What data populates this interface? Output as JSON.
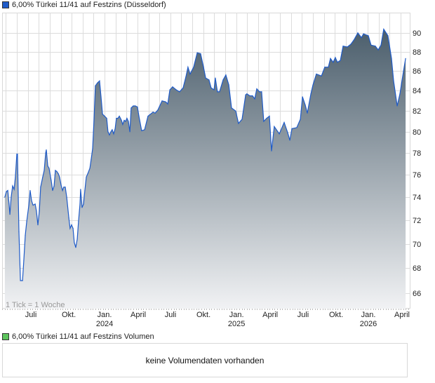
{
  "price_legend": "6,00% Türkei 11/41 auf Festzins (Düsseldorf)",
  "volume_legend": "6,00% Türkei 11/41 auf Festzins Volumen",
  "tick_info": "1 Tick = 1 Woche",
  "volume_message": "keine Volumendaten vorhanden",
  "colors": {
    "line": "#1f5bc8",
    "fill_top": "#4b5e6c",
    "fill_bottom": "#f1f2f4",
    "price_square": "#1f5bc8",
    "volume_square": "#5cc45c",
    "grid": "#dcdcdc"
  },
  "chart_data": {
    "type": "area",
    "title": "6,00% Türkei 11/41 auf Festzins (Düsseldorf)",
    "xlabel": "",
    "ylabel": "",
    "y_scale": "log",
    "ylim": [
      64.8,
      92.2
    ],
    "xlim": [
      2023.221,
      2026.325
    ],
    "grid": true,
    "legend": "top-left",
    "y_ticks": [
      66,
      68,
      70,
      72,
      74,
      76,
      78,
      80,
      82,
      84,
      86,
      88,
      90
    ],
    "x_ticks": [
      {
        "t": 2023.44,
        "label": "Juli",
        "year": ""
      },
      {
        "t": 2023.728,
        "label": "Okt.",
        "year": ""
      },
      {
        "t": 2024.0,
        "label": "Jan.",
        "year": "2024"
      },
      {
        "t": 2024.256,
        "label": "April",
        "year": ""
      },
      {
        "t": 2024.501,
        "label": "Juli",
        "year": ""
      },
      {
        "t": 2024.752,
        "label": "Okt.",
        "year": ""
      },
      {
        "t": 2025.003,
        "label": "Jan.",
        "year": "2025"
      },
      {
        "t": 2025.259,
        "label": "April",
        "year": ""
      },
      {
        "t": 2025.509,
        "label": "Juli",
        "year": ""
      },
      {
        "t": 2025.76,
        "label": "Okt.",
        "year": ""
      },
      {
        "t": 2026.005,
        "label": "Jan.",
        "year": "2026"
      },
      {
        "t": 2026.261,
        "label": "April",
        "year": ""
      }
    ],
    "series": [
      {
        "name": "6,00% Türkei 11/41 auf Festzins",
        "points": [
          [
            2023.242,
            74.0
          ],
          [
            2023.253,
            74.5
          ],
          [
            2023.264,
            74.6
          ],
          [
            2023.274,
            73.4
          ],
          [
            2023.28,
            72.5
          ],
          [
            2023.29,
            74.0
          ],
          [
            2023.301,
            75.0
          ],
          [
            2023.312,
            74.7
          ],
          [
            2023.322,
            75.8
          ],
          [
            2023.333,
            77.9
          ],
          [
            2023.338,
            77.9
          ],
          [
            2023.349,
            71.0
          ],
          [
            2023.36,
            67.0
          ],
          [
            2023.376,
            67.0
          ],
          [
            2023.386,
            68.6
          ],
          [
            2023.397,
            70.7
          ],
          [
            2023.408,
            71.9
          ],
          [
            2023.424,
            73.3
          ],
          [
            2023.434,
            74.6
          ],
          [
            2023.445,
            73.7
          ],
          [
            2023.456,
            73.3
          ],
          [
            2023.472,
            73.4
          ],
          [
            2023.482,
            72.8
          ],
          [
            2023.493,
            71.6
          ],
          [
            2023.504,
            72.8
          ],
          [
            2023.514,
            74.9
          ],
          [
            2023.53,
            75.8
          ],
          [
            2023.541,
            76.4
          ],
          [
            2023.552,
            78.0
          ],
          [
            2023.557,
            78.3
          ],
          [
            2023.568,
            76.8
          ],
          [
            2023.578,
            76.6
          ],
          [
            2023.594,
            75.5
          ],
          [
            2023.605,
            74.6
          ],
          [
            2023.616,
            75.0
          ],
          [
            2023.626,
            76.4
          ],
          [
            2023.637,
            76.3
          ],
          [
            2023.648,
            76.1
          ],
          [
            2023.658,
            75.8
          ],
          [
            2023.669,
            75.1
          ],
          [
            2023.68,
            74.6
          ],
          [
            2023.69,
            74.9
          ],
          [
            2023.701,
            74.9
          ],
          [
            2023.712,
            74.0
          ],
          [
            2023.728,
            72.2
          ],
          [
            2023.738,
            71.3
          ],
          [
            2023.749,
            71.6
          ],
          [
            2023.76,
            71.3
          ],
          [
            2023.77,
            70.1
          ],
          [
            2023.781,
            69.7
          ],
          [
            2023.792,
            70.4
          ],
          [
            2023.802,
            71.9
          ],
          [
            2023.813,
            73.4
          ],
          [
            2023.818,
            74.7
          ],
          [
            2023.829,
            73.1
          ],
          [
            2023.84,
            73.4
          ],
          [
            2023.85,
            74.6
          ],
          [
            2023.861,
            75.8
          ],
          [
            2023.872,
            76.1
          ],
          [
            2023.888,
            76.6
          ],
          [
            2023.898,
            77.4
          ],
          [
            2023.909,
            78.4
          ],
          [
            2023.92,
            81.3
          ],
          [
            2023.93,
            84.5
          ],
          [
            2023.946,
            84.8
          ],
          [
            2023.962,
            85.0
          ],
          [
            2023.973,
            83.4
          ],
          [
            2023.984,
            81.7
          ],
          [
            2024.0,
            81.5
          ],
          [
            2024.016,
            81.3
          ],
          [
            2024.026,
            80.0
          ],
          [
            2024.037,
            79.7
          ],
          [
            2024.048,
            80.0
          ],
          [
            2024.058,
            80.2
          ],
          [
            2024.069,
            79.8
          ],
          [
            2024.08,
            80.3
          ],
          [
            2024.09,
            81.3
          ],
          [
            2024.101,
            81.3
          ],
          [
            2024.112,
            81.5
          ],
          [
            2024.128,
            81.1
          ],
          [
            2024.138,
            80.7
          ],
          [
            2024.149,
            81.1
          ],
          [
            2024.16,
            81.0
          ],
          [
            2024.17,
            81.3
          ],
          [
            2024.181,
            81.0
          ],
          [
            2024.192,
            80.0
          ],
          [
            2024.202,
            82.3
          ],
          [
            2024.218,
            82.5
          ],
          [
            2024.234,
            82.5
          ],
          [
            2024.25,
            82.4
          ],
          [
            2024.261,
            81.5
          ],
          [
            2024.282,
            80.1
          ],
          [
            2024.304,
            80.2
          ],
          [
            2024.33,
            81.5
          ],
          [
            2024.368,
            81.9
          ],
          [
            2024.384,
            81.8
          ],
          [
            2024.405,
            82.1
          ],
          [
            2024.437,
            83.0
          ],
          [
            2024.464,
            82.9
          ],
          [
            2024.48,
            82.7
          ],
          [
            2024.496,
            84.1
          ],
          [
            2024.517,
            84.4
          ],
          [
            2024.544,
            84.1
          ],
          [
            2024.57,
            83.9
          ],
          [
            2024.597,
            84.3
          ],
          [
            2024.618,
            85.4
          ],
          [
            2024.634,
            86.4
          ],
          [
            2024.65,
            85.7
          ],
          [
            2024.677,
            86.4
          ],
          [
            2024.704,
            87.9
          ],
          [
            2024.73,
            87.8
          ],
          [
            2024.752,
            86.4
          ],
          [
            2024.768,
            85.3
          ],
          [
            2024.794,
            85.1
          ],
          [
            2024.81,
            84.3
          ],
          [
            2024.832,
            84.1
          ],
          [
            2024.842,
            85.3
          ],
          [
            2024.858,
            83.9
          ],
          [
            2024.874,
            83.9
          ],
          [
            2024.901,
            85.1
          ],
          [
            2024.922,
            85.6
          ],
          [
            2024.944,
            84.6
          ],
          [
            2024.965,
            82.3
          ],
          [
            2024.997,
            82.0
          ],
          [
            2025.018,
            80.8
          ],
          [
            2025.045,
            81.2
          ],
          [
            2025.072,
            83.6
          ],
          [
            2025.082,
            83.7
          ],
          [
            2025.104,
            83.5
          ],
          [
            2025.125,
            83.5
          ],
          [
            2025.141,
            83.2
          ],
          [
            2025.157,
            84.2
          ],
          [
            2025.178,
            83.9
          ],
          [
            2025.194,
            83.9
          ],
          [
            2025.21,
            81.0
          ],
          [
            2025.232,
            81.3
          ],
          [
            2025.253,
            81.5
          ],
          [
            2025.269,
            78.2
          ],
          [
            2025.29,
            80.5
          ],
          [
            2025.328,
            79.8
          ],
          [
            2025.365,
            80.9
          ],
          [
            2025.392,
            79.9
          ],
          [
            2025.408,
            79.2
          ],
          [
            2025.424,
            80.3
          ],
          [
            2025.461,
            80.4
          ],
          [
            2025.488,
            81.2
          ],
          [
            2025.504,
            83.4
          ],
          [
            2025.525,
            82.6
          ],
          [
            2025.541,
            81.8
          ],
          [
            2025.568,
            83.7
          ],
          [
            2025.584,
            84.6
          ],
          [
            2025.61,
            85.7
          ],
          [
            2025.648,
            85.5
          ],
          [
            2025.674,
            86.4
          ],
          [
            2025.701,
            86.4
          ],
          [
            2025.717,
            87.3
          ],
          [
            2025.738,
            86.9
          ],
          [
            2025.754,
            87.4
          ],
          [
            2025.77,
            86.9
          ],
          [
            2025.792,
            87.1
          ],
          [
            2025.813,
            88.6
          ],
          [
            2025.845,
            88.5
          ],
          [
            2025.872,
            88.8
          ],
          [
            2025.898,
            89.3
          ],
          [
            2025.925,
            90.0
          ],
          [
            2025.952,
            89.5
          ],
          [
            2025.968,
            89.9
          ],
          [
            2026.005,
            89.7
          ],
          [
            2026.026,
            88.7
          ],
          [
            2026.058,
            88.6
          ],
          [
            2026.08,
            88.2
          ],
          [
            2026.101,
            88.7
          ],
          [
            2026.122,
            90.4
          ],
          [
            2026.154,
            89.7
          ],
          [
            2026.181,
            87.3
          ],
          [
            2026.197,
            85.0
          ],
          [
            2026.224,
            82.5
          ],
          [
            2026.245,
            83.7
          ],
          [
            2026.272,
            86.0
          ],
          [
            2026.288,
            87.3
          ]
        ]
      }
    ]
  }
}
